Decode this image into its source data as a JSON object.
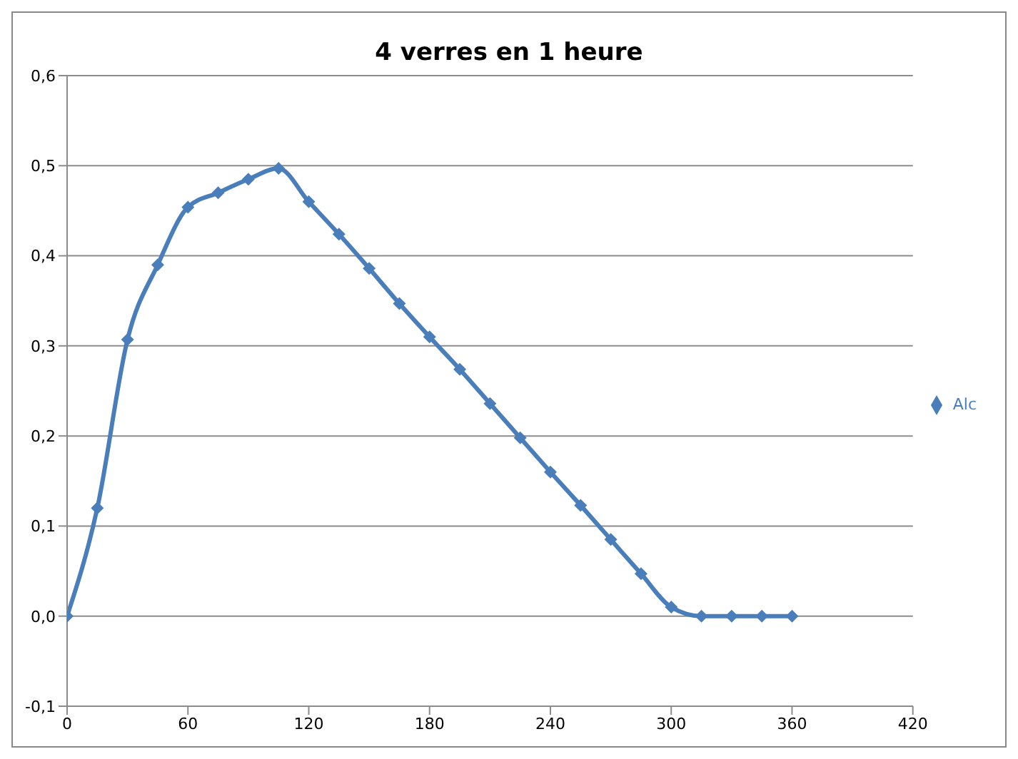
{
  "chart_data": {
    "type": "line",
    "title": "4 verres en 1 heure",
    "x": [
      0,
      15,
      30,
      45,
      60,
      75,
      90,
      105,
      120,
      135,
      150,
      165,
      180,
      195,
      210,
      225,
      240,
      255,
      270,
      285,
      300,
      315,
      330,
      345,
      360
    ],
    "series": [
      {
        "name": "Alc",
        "color": "#4a7ebb",
        "values": [
          0,
          0.12,
          0.307,
          0.39,
          0.454,
          0.47,
          0.485,
          0.497,
          0.46,
          0.424,
          0.386,
          0.347,
          0.31,
          0.274,
          0.236,
          0.198,
          0.16,
          0.123,
          0.085,
          0.047,
          0.01,
          0,
          0,
          0,
          0
        ]
      }
    ],
    "xlim": [
      0,
      420
    ],
    "xticks": [
      0,
      60,
      120,
      180,
      240,
      300,
      360,
      420
    ],
    "ylim": [
      -0.1,
      0.6
    ],
    "yticks": [
      {
        "value": -0.1,
        "label": "-0,1"
      },
      {
        "value": 0,
        "label": "0,0"
      },
      {
        "value": 0.1,
        "label": "0,1"
      },
      {
        "value": 0.2,
        "label": "0,2"
      },
      {
        "value": 0.3,
        "label": "0,3"
      },
      {
        "value": 0.4,
        "label": "0,4"
      },
      {
        "value": 0.5,
        "label": "0,5"
      },
      {
        "value": 0.6,
        "label": "0,6"
      }
    ],
    "grid": "y",
    "legend": "right",
    "marker": "diamond",
    "line_style": "solid"
  }
}
